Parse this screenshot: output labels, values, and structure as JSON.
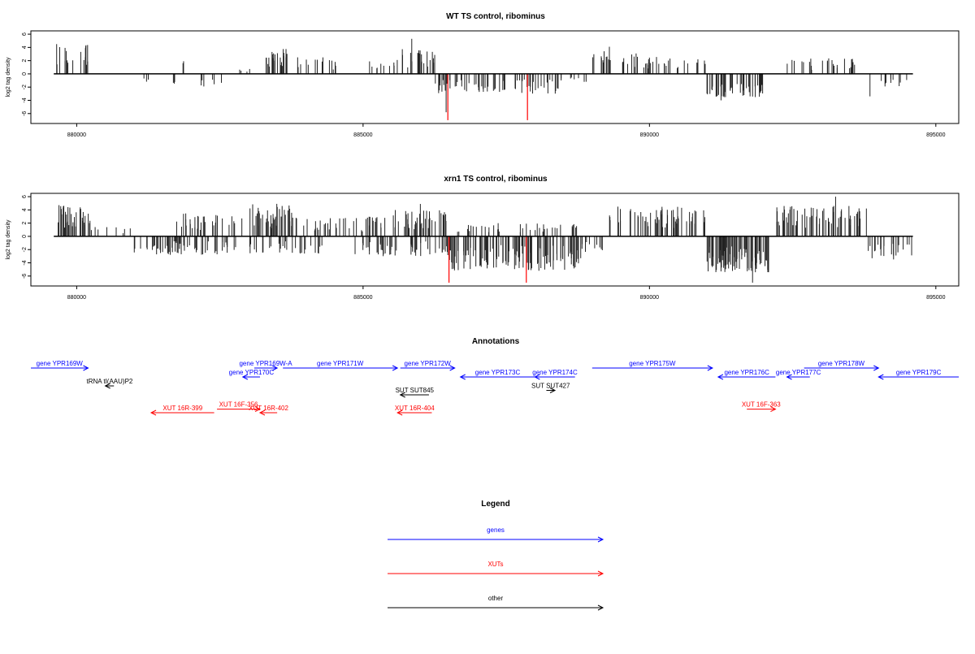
{
  "colors": {
    "gene": "#0000ff",
    "xut": "#ff0000",
    "other": "#000000",
    "peak": "#ff0000"
  },
  "chart_data": [
    {
      "type": "bar",
      "title": "WT TS control, ribominus",
      "xlabel": "",
      "ylabel": "log2 tag density",
      "xlim": [
        879200,
        895400
      ],
      "ylim": [
        -7.5,
        6.5
      ],
      "x_ticks": [
        880000,
        885000,
        890000,
        895000
      ],
      "x_tick_labels": [
        "880000",
        "885000",
        "890000",
        "895000"
      ],
      "y_ticks": [
        -6,
        -4,
        -2,
        0,
        2,
        4,
        6
      ],
      "y_tick_labels": [
        "-6",
        "-4",
        "-2",
        "0",
        "2",
        "4",
        "6"
      ],
      "baseline_range": [
        879600,
        894600
      ],
      "clusters": [
        {
          "x0": 879650,
          "x1": 880200,
          "sign": 1,
          "amp": 4.5,
          "density": 20
        },
        {
          "x0": 881150,
          "x1": 881250,
          "sign": -1,
          "amp": 1.6,
          "density": 3
        },
        {
          "x0": 881650,
          "x1": 881750,
          "sign": -1,
          "amp": 1.8,
          "density": 3
        },
        {
          "x0": 881850,
          "x1": 881900,
          "sign": 1,
          "amp": 2.3,
          "density": 2
        },
        {
          "x0": 882150,
          "x1": 882550,
          "sign": -1,
          "amp": 2.4,
          "density": 6
        },
        {
          "x0": 882800,
          "x1": 883100,
          "sign": 1,
          "amp": 1.0,
          "density": 4
        },
        {
          "x0": 883300,
          "x1": 883700,
          "sign": 1,
          "amp": 3.8,
          "density": 30
        },
        {
          "x0": 883800,
          "x1": 884600,
          "sign": 1,
          "amp": 2.6,
          "density": 14
        },
        {
          "x0": 885100,
          "x1": 885600,
          "sign": 1,
          "amp": 2.2,
          "density": 10
        },
        {
          "x0": 885650,
          "x1": 886300,
          "sign": 1,
          "amp": 3.8,
          "density": 22
        },
        {
          "x0": 886250,
          "x1": 888500,
          "sign": -1,
          "amp": 3.0,
          "density": 70
        },
        {
          "x0": 888400,
          "x1": 888900,
          "sign": -1,
          "amp": 1.3,
          "density": 8
        },
        {
          "x0": 889000,
          "x1": 889800,
          "sign": 1,
          "amp": 3.5,
          "density": 22
        },
        {
          "x0": 889900,
          "x1": 891000,
          "sign": 1,
          "amp": 2.6,
          "density": 26
        },
        {
          "x0": 891000,
          "x1": 892000,
          "sign": -1,
          "amp": 3.6,
          "density": 50
        },
        {
          "x0": 892400,
          "x1": 893600,
          "sign": 1,
          "amp": 2.4,
          "density": 26
        },
        {
          "x0": 893900,
          "x1": 894500,
          "sign": -1,
          "amp": 2.0,
          "density": 10
        }
      ],
      "spikes": [
        {
          "x": 879650,
          "y": 4.5
        },
        {
          "x": 885850,
          "y": 5.3
        },
        {
          "x": 889300,
          "y": 4.1
        },
        {
          "x": 891250,
          "y": -4.0
        },
        {
          "x": 893850,
          "y": -3.4
        },
        {
          "x": 886450,
          "y": -5.8
        }
      ],
      "red_spikes": [
        {
          "x": 886480,
          "y": -7.0
        },
        {
          "x": 887870,
          "y": -7.0
        }
      ]
    },
    {
      "type": "bar",
      "title": "xrn1 TS control, ribominus",
      "xlabel": "",
      "ylabel": "log2 tag density",
      "xlim": [
        879200,
        895400
      ],
      "ylim": [
        -7.5,
        6.5
      ],
      "x_ticks": [
        880000,
        885000,
        890000,
        895000
      ],
      "x_tick_labels": [
        "880000",
        "885000",
        "890000",
        "895000"
      ],
      "y_ticks": [
        -6,
        -4,
        -2,
        0,
        2,
        4,
        6
      ],
      "y_tick_labels": [
        "-6",
        "-4",
        "-2",
        "0",
        "2",
        "4",
        "6"
      ],
      "baseline_range": [
        879600,
        894600
      ],
      "clusters": [
        {
          "x0": 879650,
          "x1": 880250,
          "sign": 1,
          "amp": 5.0,
          "density": 40
        },
        {
          "x0": 880250,
          "x1": 881000,
          "sign": 1,
          "amp": 1.5,
          "density": 8
        },
        {
          "x0": 881000,
          "x1": 882800,
          "sign": -1,
          "amp": 2.8,
          "density": 60
        },
        {
          "x0": 881700,
          "x1": 882900,
          "sign": 1,
          "amp": 3.5,
          "density": 30
        },
        {
          "x0": 883000,
          "x1": 883800,
          "sign": 1,
          "amp": 5.0,
          "density": 40
        },
        {
          "x0": 883000,
          "x1": 884300,
          "sign": -1,
          "amp": 2.6,
          "density": 30
        },
        {
          "x0": 883800,
          "x1": 885400,
          "sign": 1,
          "amp": 3.0,
          "density": 40
        },
        {
          "x0": 884800,
          "x1": 885600,
          "sign": -1,
          "amp": 3.0,
          "density": 26
        },
        {
          "x0": 885500,
          "x1": 886500,
          "sign": 1,
          "amp": 4.0,
          "density": 40
        },
        {
          "x0": 885800,
          "x1": 886600,
          "sign": -1,
          "amp": 3.0,
          "density": 26
        },
        {
          "x0": 886500,
          "x1": 888800,
          "sign": -1,
          "amp": 5.2,
          "density": 120
        },
        {
          "x0": 886600,
          "x1": 888800,
          "sign": 1,
          "amp": 2.0,
          "density": 40
        },
        {
          "x0": 888800,
          "x1": 889200,
          "sign": -1,
          "amp": 2.6,
          "density": 10
        },
        {
          "x0": 889300,
          "x1": 891000,
          "sign": 1,
          "amp": 4.5,
          "density": 60
        },
        {
          "x0": 891000,
          "x1": 892100,
          "sign": -1,
          "amp": 5.5,
          "density": 90
        },
        {
          "x0": 892200,
          "x1": 893900,
          "sign": 1,
          "amp": 4.6,
          "density": 60
        },
        {
          "x0": 893800,
          "x1": 894600,
          "sign": -1,
          "amp": 3.6,
          "density": 22
        }
      ],
      "spikes": [
        {
          "x": 893250,
          "y": 6.0
        },
        {
          "x": 891800,
          "y": -7.0
        },
        {
          "x": 886000,
          "y": 4.9
        }
      ],
      "red_spikes": [
        {
          "x": 886500,
          "y": -7.0
        },
        {
          "x": 887850,
          "y": -7.0
        }
      ]
    }
  ],
  "annotations": {
    "title": "Annotations",
    "items": [
      {
        "label": "gene YPR169W",
        "kind": "gene",
        "x0": 879200,
        "x1": 880200,
        "dir": "right",
        "row": 0
      },
      {
        "label": "gene YPR169W-A",
        "kind": "gene",
        "x0": 883100,
        "x1": 883500,
        "dir": "right",
        "row": 0
      },
      {
        "label": "gene YPR170C",
        "kind": "gene",
        "x0": 882900,
        "x1": 883200,
        "dir": "left",
        "row": 1
      },
      {
        "label": "gene YPR171W",
        "kind": "gene",
        "x0": 883600,
        "x1": 885600,
        "dir": "right",
        "row": 0
      },
      {
        "label": "gene YPR172W",
        "kind": "gene",
        "x0": 885650,
        "x1": 886600,
        "dir": "right",
        "row": 0
      },
      {
        "label": "gene YPR173C",
        "kind": "gene",
        "x0": 886700,
        "x1": 888000,
        "dir": "left",
        "row": 1
      },
      {
        "label": "gene YPR174C",
        "kind": "gene",
        "x0": 888000,
        "x1": 888700,
        "dir": "left",
        "row": 1
      },
      {
        "label": "gene YPR175W",
        "kind": "gene",
        "x0": 889000,
        "x1": 891100,
        "dir": "right",
        "row": 0
      },
      {
        "label": "gene YPR176C",
        "kind": "gene",
        "x0": 891200,
        "x1": 892200,
        "dir": "left",
        "row": 1
      },
      {
        "label": "gene YPR177C",
        "kind": "gene",
        "x0": 892400,
        "x1": 892800,
        "dir": "left",
        "row": 1
      },
      {
        "label": "gene YPR178W",
        "kind": "gene",
        "x0": 892700,
        "x1": 894000,
        "dir": "right",
        "row": 0
      },
      {
        "label": "gene YPR179C",
        "kind": "gene",
        "x0": 894000,
        "x1": 895400,
        "dir": "left",
        "row": 1
      },
      {
        "label": "tRNA tI(AAU)P2",
        "kind": "other",
        "x0": 880500,
        "x1": 880650,
        "dir": "left",
        "row": 2
      },
      {
        "label": "SUT SUT845",
        "kind": "other",
        "x0": 885650,
        "x1": 886150,
        "dir": "left",
        "row": 3
      },
      {
        "label": "SUT SUT427",
        "kind": "other",
        "x0": 888200,
        "x1": 888350,
        "dir": "right",
        "row": 2.5
      },
      {
        "label": "XUT 16R-399",
        "kind": "xut",
        "x0": 881300,
        "x1": 882400,
        "dir": "left",
        "row": 5
      },
      {
        "label": "XUT 16F-356",
        "kind": "xut",
        "x0": 882450,
        "x1": 883200,
        "dir": "right",
        "row": 4.6
      },
      {
        "label": "XUT 16R-402",
        "kind": "xut",
        "x0": 883200,
        "x1": 883500,
        "dir": "left",
        "row": 5
      },
      {
        "label": "XUT 16R-404",
        "kind": "xut",
        "x0": 885600,
        "x1": 886200,
        "dir": "left",
        "row": 5
      },
      {
        "label": "XUT 16F-363",
        "kind": "xut",
        "x0": 891700,
        "x1": 892200,
        "dir": "right",
        "row": 4.6
      }
    ]
  },
  "legend": {
    "title": "Legend",
    "items": [
      {
        "label": "genes",
        "kind": "gene"
      },
      {
        "label": "XUTs",
        "kind": "xut"
      },
      {
        "label": "other",
        "kind": "other"
      }
    ]
  }
}
